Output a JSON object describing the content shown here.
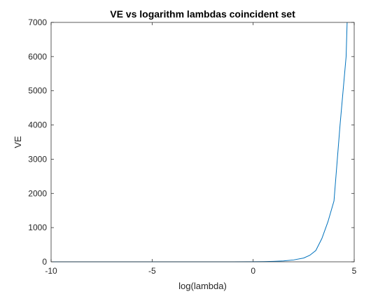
{
  "chart_data": {
    "type": "line",
    "title": "VE vs logarithm lambdas coincident set",
    "xlabel": "log(lambda)",
    "ylabel": "VE",
    "xlim": [
      -10,
      5
    ],
    "ylim": [
      0,
      7000
    ],
    "xticks": [
      "-10",
      "-5",
      "0",
      "5"
    ],
    "yticks": [
      "0",
      "1000",
      "2000",
      "3000",
      "4000",
      "5000",
      "6000",
      "7000"
    ],
    "grid": false,
    "legend": "none",
    "line_color": "#0072BD",
    "series": [
      {
        "x": [
          -9.9,
          -9.0,
          -8.0,
          -7.0,
          -6.0,
          -5.0,
          -4.0,
          -3.0,
          -2.0,
          -1.0,
          0.0,
          0.5,
          1.0,
          1.5,
          2.0,
          2.5,
          2.8,
          3.1,
          3.4,
          3.7,
          4.0,
          4.3,
          4.6,
          4.65
        ],
        "y": [
          0,
          0,
          0,
          0,
          0,
          0,
          0,
          0,
          0,
          0,
          2,
          5,
          12,
          25,
          55,
          110,
          190,
          330,
          680,
          1170,
          1780,
          4000,
          6000,
          7000
        ]
      }
    ]
  }
}
